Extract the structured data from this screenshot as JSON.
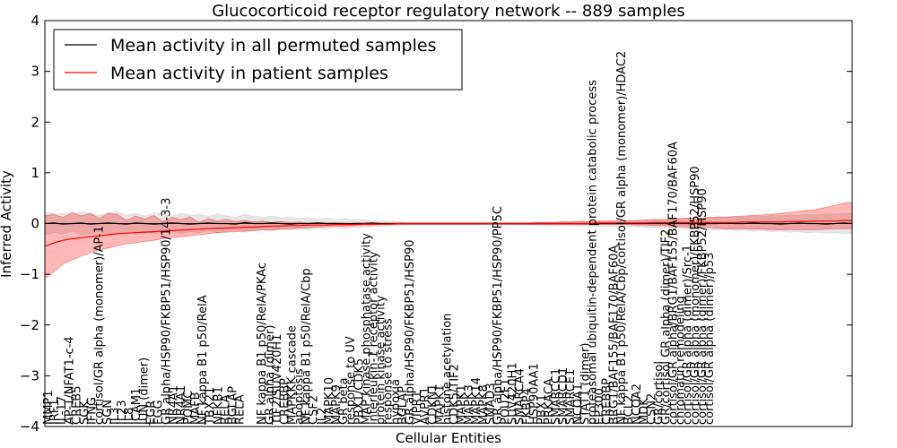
{
  "chart_data": {
    "type": "line",
    "title": "Glucocorticoid receptor regulatory network -- 889 samples",
    "xlabel": "Cellular Entities",
    "ylabel": "Inferred Activity",
    "ylim": [
      -4,
      4
    ],
    "yticks": [
      -4,
      -3,
      -2,
      -1,
      0,
      1,
      2,
      3,
      4
    ],
    "legend_position": "top-left",
    "series": [
      {
        "name": "Mean activity in all permuted samples",
        "color": "#000000",
        "band_color": "#bbbbbb",
        "x": [
          0,
          10,
          20,
          30,
          40,
          50,
          60,
          70,
          80,
          90,
          100,
          110,
          120,
          130,
          140,
          150,
          160,
          170,
          180,
          190,
          200,
          210,
          220,
          230,
          240,
          250,
          260,
          270,
          280,
          290,
          300,
          310,
          320,
          330,
          340,
          350,
          360,
          370,
          380,
          390,
          400,
          410,
          420,
          430,
          440,
          450,
          460,
          470,
          480,
          490,
          500,
          510,
          520,
          530,
          540,
          550,
          560,
          570,
          580,
          590,
          600,
          610,
          620,
          630,
          640,
          650,
          660,
          670,
          680,
          690,
          700,
          710,
          720,
          730,
          740,
          750,
          760,
          770,
          780,
          790,
          800,
          810,
          820,
          830,
          840,
          850,
          860,
          870,
          880,
          889
        ],
        "values": [
          0,
          0.01,
          -0.01,
          0,
          0.01,
          -0.01,
          0,
          0.01,
          0,
          -0.01,
          0.01,
          0,
          -0.01,
          0,
          0.01,
          0,
          -0.01,
          0,
          0.01,
          0,
          0,
          -0.01,
          0.02,
          0,
          0,
          0.01,
          0,
          -0.01,
          0,
          0,
          0.01,
          0,
          0,
          -0.01,
          0,
          0,
          0.01,
          0,
          0,
          0,
          0,
          0,
          0,
          0,
          0,
          0,
          0,
          0,
          0,
          0,
          0,
          0,
          0,
          0,
          0,
          0,
          0,
          0,
          0,
          0,
          0,
          0,
          0,
          0,
          0,
          0,
          0,
          0,
          0,
          0,
          0,
          0,
          0,
          0,
          0,
          0.01,
          0,
          0,
          0.01,
          0,
          0,
          -0.01,
          0,
          0.01,
          0,
          0,
          -0.01,
          0,
          0.01,
          0
        ],
        "lower": [
          -0.22,
          -0.18,
          -0.2,
          -0.15,
          -0.22,
          -0.2,
          -0.16,
          -0.2,
          -0.22,
          -0.17,
          -0.2,
          -0.15,
          -0.2,
          -0.18,
          -0.14,
          -0.2,
          -0.16,
          -0.18,
          -0.14,
          -0.18,
          -0.15,
          -0.12,
          -0.17,
          -0.14,
          -0.12,
          -0.15,
          -0.11,
          -0.13,
          -0.1,
          -0.12,
          -0.09,
          -0.11,
          -0.08,
          -0.1,
          -0.07,
          -0.08,
          -0.06,
          -0.05,
          -0.04,
          -0.03,
          -0.02,
          -0.02,
          -0.02,
          -0.02,
          -0.02,
          -0.02,
          -0.02,
          -0.02,
          -0.02,
          -0.02,
          -0.02,
          -0.02,
          -0.02,
          -0.02,
          -0.03,
          -0.03,
          -0.03,
          -0.04,
          -0.04,
          -0.04,
          -0.05,
          -0.05,
          -0.05,
          -0.06,
          -0.06,
          -0.06,
          -0.07,
          -0.08,
          -0.08,
          -0.09,
          -0.1,
          -0.11,
          -0.1,
          -0.12,
          -0.13,
          -0.12,
          -0.14,
          -0.13,
          -0.15,
          -0.14,
          -0.16,
          -0.15,
          -0.17,
          -0.16,
          -0.18,
          -0.17,
          -0.19,
          -0.18,
          -0.2,
          -0.2
        ],
        "upper": [
          0.22,
          0.19,
          0.2,
          0.17,
          0.23,
          0.2,
          0.16,
          0.21,
          0.23,
          0.17,
          0.2,
          0.15,
          0.21,
          0.18,
          0.14,
          0.2,
          0.16,
          0.18,
          0.14,
          0.19,
          0.15,
          0.12,
          0.18,
          0.14,
          0.12,
          0.15,
          0.11,
          0.13,
          0.1,
          0.12,
          0.09,
          0.11,
          0.08,
          0.1,
          0.07,
          0.08,
          0.06,
          0.05,
          0.04,
          0.03,
          0.02,
          0.02,
          0.02,
          0.02,
          0.02,
          0.02,
          0.02,
          0.02,
          0.02,
          0.02,
          0.02,
          0.02,
          0.02,
          0.02,
          0.03,
          0.03,
          0.03,
          0.04,
          0.04,
          0.04,
          0.05,
          0.05,
          0.05,
          0.06,
          0.06,
          0.06,
          0.07,
          0.08,
          0.08,
          0.09,
          0.1,
          0.11,
          0.1,
          0.12,
          0.13,
          0.12,
          0.14,
          0.13,
          0.15,
          0.14,
          0.16,
          0.15,
          0.17,
          0.16,
          0.18,
          0.17,
          0.19,
          0.18,
          0.2,
          0.2
        ]
      },
      {
        "name": "Mean activity in patient samples",
        "color": "#ff0000",
        "band_color": "#ff0000",
        "x": [
          0,
          10,
          20,
          30,
          40,
          50,
          60,
          70,
          80,
          90,
          100,
          110,
          120,
          130,
          140,
          150,
          160,
          170,
          180,
          190,
          200,
          210,
          220,
          230,
          240,
          250,
          260,
          270,
          280,
          290,
          300,
          310,
          320,
          330,
          340,
          350,
          360,
          370,
          380,
          390,
          400,
          410,
          420,
          430,
          440,
          450,
          460,
          470,
          480,
          490,
          500,
          510,
          520,
          530,
          540,
          550,
          560,
          570,
          580,
          590,
          600,
          610,
          620,
          630,
          640,
          650,
          660,
          670,
          680,
          690,
          700,
          710,
          720,
          730,
          740,
          750,
          760,
          770,
          780,
          790,
          800,
          810,
          820,
          830,
          840,
          850,
          860,
          870,
          880,
          889
        ],
        "values": [
          -0.45,
          -0.38,
          -0.33,
          -0.3,
          -0.28,
          -0.26,
          -0.24,
          -0.22,
          -0.2,
          -0.19,
          -0.18,
          -0.17,
          -0.16,
          -0.15,
          -0.14,
          -0.13,
          -0.12,
          -0.11,
          -0.1,
          -0.09,
          -0.09,
          -0.08,
          -0.07,
          -0.07,
          -0.06,
          -0.05,
          -0.05,
          -0.04,
          -0.04,
          -0.03,
          -0.03,
          -0.03,
          -0.02,
          -0.02,
          -0.02,
          -0.01,
          -0.01,
          -0.01,
          -0.01,
          0,
          0,
          0,
          0,
          0,
          0,
          0,
          0,
          0,
          0,
          0,
          0,
          0,
          0,
          0,
          0,
          0,
          0,
          0,
          0,
          0,
          0,
          0.01,
          0.01,
          0.01,
          0.01,
          0.01,
          0.01,
          0.02,
          0.02,
          0.02,
          0.02,
          0.02,
          0.02,
          0.02,
          0.02,
          0.02,
          0.02,
          0.03,
          0.03,
          0.03,
          0.03,
          0.03,
          0.04,
          0.04,
          0.04,
          0.05,
          0.05,
          0.05,
          0.06,
          0.06
        ],
        "lower": [
          -1.08,
          -0.95,
          -0.8,
          -0.72,
          -0.64,
          -0.58,
          -0.52,
          -0.48,
          -0.44,
          -0.4,
          -0.38,
          -0.35,
          -0.33,
          -0.3,
          -0.28,
          -0.26,
          -0.24,
          -0.22,
          -0.2,
          -0.18,
          -0.17,
          -0.16,
          -0.15,
          -0.14,
          -0.13,
          -0.12,
          -0.11,
          -0.1,
          -0.09,
          -0.08,
          -0.07,
          -0.06,
          -0.05,
          -0.05,
          -0.04,
          -0.03,
          -0.03,
          -0.02,
          -0.02,
          -0.02,
          -0.02,
          -0.02,
          -0.02,
          -0.02,
          -0.02,
          -0.02,
          -0.02,
          -0.02,
          -0.02,
          -0.02,
          -0.02,
          -0.02,
          -0.02,
          -0.02,
          -0.02,
          -0.02,
          -0.02,
          -0.02,
          -0.02,
          -0.02,
          -0.02,
          -0.02,
          -0.02,
          -0.02,
          -0.02,
          -0.03,
          -0.03,
          -0.04,
          -0.04,
          -0.05,
          -0.06,
          -0.07,
          -0.06,
          -0.08,
          -0.09,
          -0.1,
          -0.1,
          -0.1,
          -0.11,
          -0.11,
          -0.12,
          -0.12,
          -0.12,
          -0.12,
          -0.12,
          -0.12,
          -0.11,
          -0.1,
          -0.1,
          -0.1
        ],
        "upper": [
          0.15,
          0.18,
          0.12,
          0.22,
          0.15,
          0.2,
          0.1,
          0.2,
          0.18,
          0.06,
          0.15,
          0.09,
          0.16,
          0.04,
          0.12,
          0.08,
          0.13,
          0.02,
          0.1,
          0.05,
          0.08,
          0.04,
          0.06,
          0.03,
          0.05,
          0.02,
          0.04,
          0.02,
          0.03,
          0.01,
          0.02,
          0.01,
          0.02,
          0.01,
          0.01,
          0.01,
          0.01,
          0.01,
          0.01,
          0.01,
          0.01,
          0.01,
          0.01,
          0.01,
          0.01,
          0.01,
          0.01,
          0.01,
          0.01,
          0.01,
          0.01,
          0.01,
          0.01,
          0.01,
          0.02,
          0.02,
          0.02,
          0.03,
          0.03,
          0.04,
          0.04,
          0.05,
          0.05,
          0.05,
          0.06,
          0.06,
          0.07,
          0.08,
          0.08,
          0.09,
          0.1,
          0.11,
          0.1,
          0.12,
          0.13,
          0.13,
          0.14,
          0.15,
          0.16,
          0.17,
          0.18,
          0.2,
          0.22,
          0.24,
          0.26,
          0.28,
          0.32,
          0.36,
          0.4,
          0.42
        ]
      }
    ],
    "xlim": [
      0,
      889
    ],
    "x_tick_labels": [
      {
        "x": 3,
        "label": "MMP1"
      },
      {
        "x": 10,
        "label": "IRF1"
      },
      {
        "x": 18,
        "label": "IL-17"
      },
      {
        "x": 26,
        "label": "AP-1/NFAT1-c-4"
      },
      {
        "x": 34,
        "label": "CREB5"
      },
      {
        "x": 43,
        "label": "SGK"
      },
      {
        "x": 51,
        "label": "IFNG"
      },
      {
        "x": 59,
        "label": "cortisol/GR alpha (monomer)/AP-1"
      },
      {
        "x": 68,
        "label": "SGN"
      },
      {
        "x": 76,
        "label": "IL3"
      },
      {
        "x": 84,
        "label": "IL23"
      },
      {
        "x": 92,
        "label": "IL8"
      },
      {
        "x": 100,
        "label": "ICAM1"
      },
      {
        "x": 108,
        "label": "JUN (dimer)"
      },
      {
        "x": 116,
        "label": "EGR"
      },
      {
        "x": 124,
        "label": "FGG"
      },
      {
        "x": 133,
        "label": "GR alpha/HSP90/FKBP51/HSP90/14-3-3"
      },
      {
        "x": 141,
        "label": "NR4A1"
      },
      {
        "x": 149,
        "label": "NR4A1"
      },
      {
        "x": 157,
        "label": "POMC"
      },
      {
        "x": 165,
        "label": "MAFB"
      },
      {
        "x": 173,
        "label": "NF kappa B1 p50/RelA"
      },
      {
        "x": 181,
        "label": "TBX21"
      },
      {
        "x": 190,
        "label": "NFKB1"
      },
      {
        "x": 198,
        "label": "RELA"
      },
      {
        "x": 206,
        "label": "BGLAP"
      },
      {
        "x": 214,
        "label": "RELA"
      },
      {
        "x": 238,
        "label": "NF kappa B1 p50/RelA/PKAc"
      },
      {
        "x": 247,
        "label": "GR alpha (dimer)"
      },
      {
        "x": 255,
        "label": "TIF2/SUV420H1"
      },
      {
        "x": 263,
        "label": "CREBBP"
      },
      {
        "x": 271,
        "label": "MAPKKK cascade"
      },
      {
        "x": 279,
        "label": "apoptosis"
      },
      {
        "x": 287,
        "label": "NF kappa B1 p50/RelA/Cbp"
      },
      {
        "x": 295,
        "label": "CSF2"
      },
      {
        "x": 304,
        "label": "IL2"
      },
      {
        "x": 312,
        "label": "MAPK10"
      },
      {
        "x": 320,
        "label": "MAPK9"
      },
      {
        "x": 328,
        "label": "GR beta"
      },
      {
        "x": 336,
        "label": "response to UV"
      },
      {
        "x": 345,
        "label": "PBX1/CDK5"
      },
      {
        "x": 353,
        "label": "MAP kinase phosphatase activity"
      },
      {
        "x": 361,
        "label": "interleukin-1 receptor activity"
      },
      {
        "x": 369,
        "label": "protein kinase activity"
      },
      {
        "x": 377,
        "label": "response to stress"
      },
      {
        "x": 385,
        "label": "hypoxia"
      },
      {
        "x": 393,
        "label": "BGLAP"
      },
      {
        "x": 401,
        "label": "GR alpha/HSP90/FKBP51/HSP90"
      },
      {
        "x": 409,
        "label": "VIPR1"
      },
      {
        "x": 418,
        "label": "AVPR1"
      },
      {
        "x": 426,
        "label": "CDKN1"
      },
      {
        "x": 434,
        "label": "MAPK1"
      },
      {
        "x": 442,
        "label": "histone acetylation"
      },
      {
        "x": 450,
        "label": "CDK5/TIF2"
      },
      {
        "x": 458,
        "label": "MAPK1"
      },
      {
        "x": 466,
        "label": "MAPK3"
      },
      {
        "x": 474,
        "label": "MAPK14"
      },
      {
        "x": 482,
        "label": "MAPK8"
      },
      {
        "x": 490,
        "label": "SMAD3"
      },
      {
        "x": 498,
        "label": "GR alpha/HSP90/FKBP51/HSP90/PP5C"
      },
      {
        "x": 506,
        "label": "POU2F1"
      },
      {
        "x": 514,
        "label": "SUV420H1"
      },
      {
        "x": 522,
        "label": "SMARCA4"
      },
      {
        "x": 530,
        "label": "FKBP4"
      },
      {
        "x": 538,
        "label": "HSP90AA1"
      },
      {
        "x": 546,
        "label": "PBX1"
      },
      {
        "x": 554,
        "label": "PRKACA"
      },
      {
        "x": 562,
        "label": "SMARCC1"
      },
      {
        "x": 570,
        "label": "SMARCD1"
      },
      {
        "x": 578,
        "label": "SMARCE1"
      },
      {
        "x": 586,
        "label": "NCOA1"
      },
      {
        "x": 594,
        "label": "STAT1 (dimer)"
      },
      {
        "x": 602,
        "label": "proteasomal ubiquitin-dependent protein catabolic process"
      },
      {
        "x": 610,
        "label": "EP300"
      },
      {
        "x": 618,
        "label": "CREBBP"
      },
      {
        "x": 626,
        "label": "BRG1/BAF155/BAF170/BAF60A"
      },
      {
        "x": 634,
        "label": "NF kappa B1 p50/RelA/Cbp/cortisol/GR alpha (monomer)/HDAC2"
      },
      {
        "x": 642,
        "label": "BCL2"
      },
      {
        "x": 651,
        "label": "NCOA2"
      },
      {
        "x": 659,
        "label": "MDK"
      },
      {
        "x": 667,
        "label": "CSN2"
      },
      {
        "x": 675,
        "label": "GR/cortisol"
      },
      {
        "x": 683,
        "label": "GR/cortisol GR alpha (dimer)/TIF2"
      },
      {
        "x": 691,
        "label": "cortisol/GR alpha/BRG1/BAF155/BAF170/BAF60A"
      },
      {
        "x": 699,
        "label": "chromatin remodeling"
      },
      {
        "x": 707,
        "label": "cortisol/GR alpha (dimer)/Src-1"
      },
      {
        "x": 715,
        "label": "cortisol/GR alpha (monomer)/FKBP52/HSP90"
      },
      {
        "x": 723,
        "label": "cortisol/GR alpha (dimer)/FKBP52/HSP90"
      },
      {
        "x": 731,
        "label": "cortisol/GR alpha (dimer)/p53"
      }
    ],
    "legend": [
      {
        "label": "Mean activity in all permuted samples",
        "color": "#000000"
      },
      {
        "label": "Mean activity in patient samples",
        "color": "#ff0000"
      }
    ]
  }
}
